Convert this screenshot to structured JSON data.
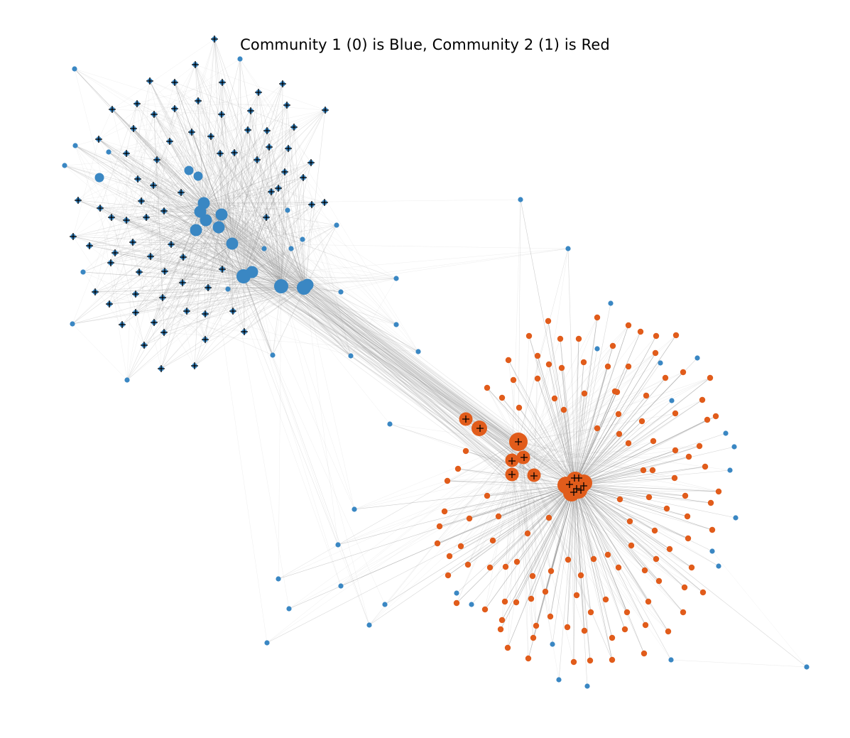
{
  "title": "Community 1 (0) is Blue, Community 2 (1) is Red",
  "colors": {
    "community_1": "#3a87c3",
    "community_2": "#e15c1b",
    "edge": "#8c8c8c",
    "marker": "#000000"
  },
  "legend": {
    "community_1": "Community 1 (0)",
    "community_2": "Community 2 (1)"
  }
}
